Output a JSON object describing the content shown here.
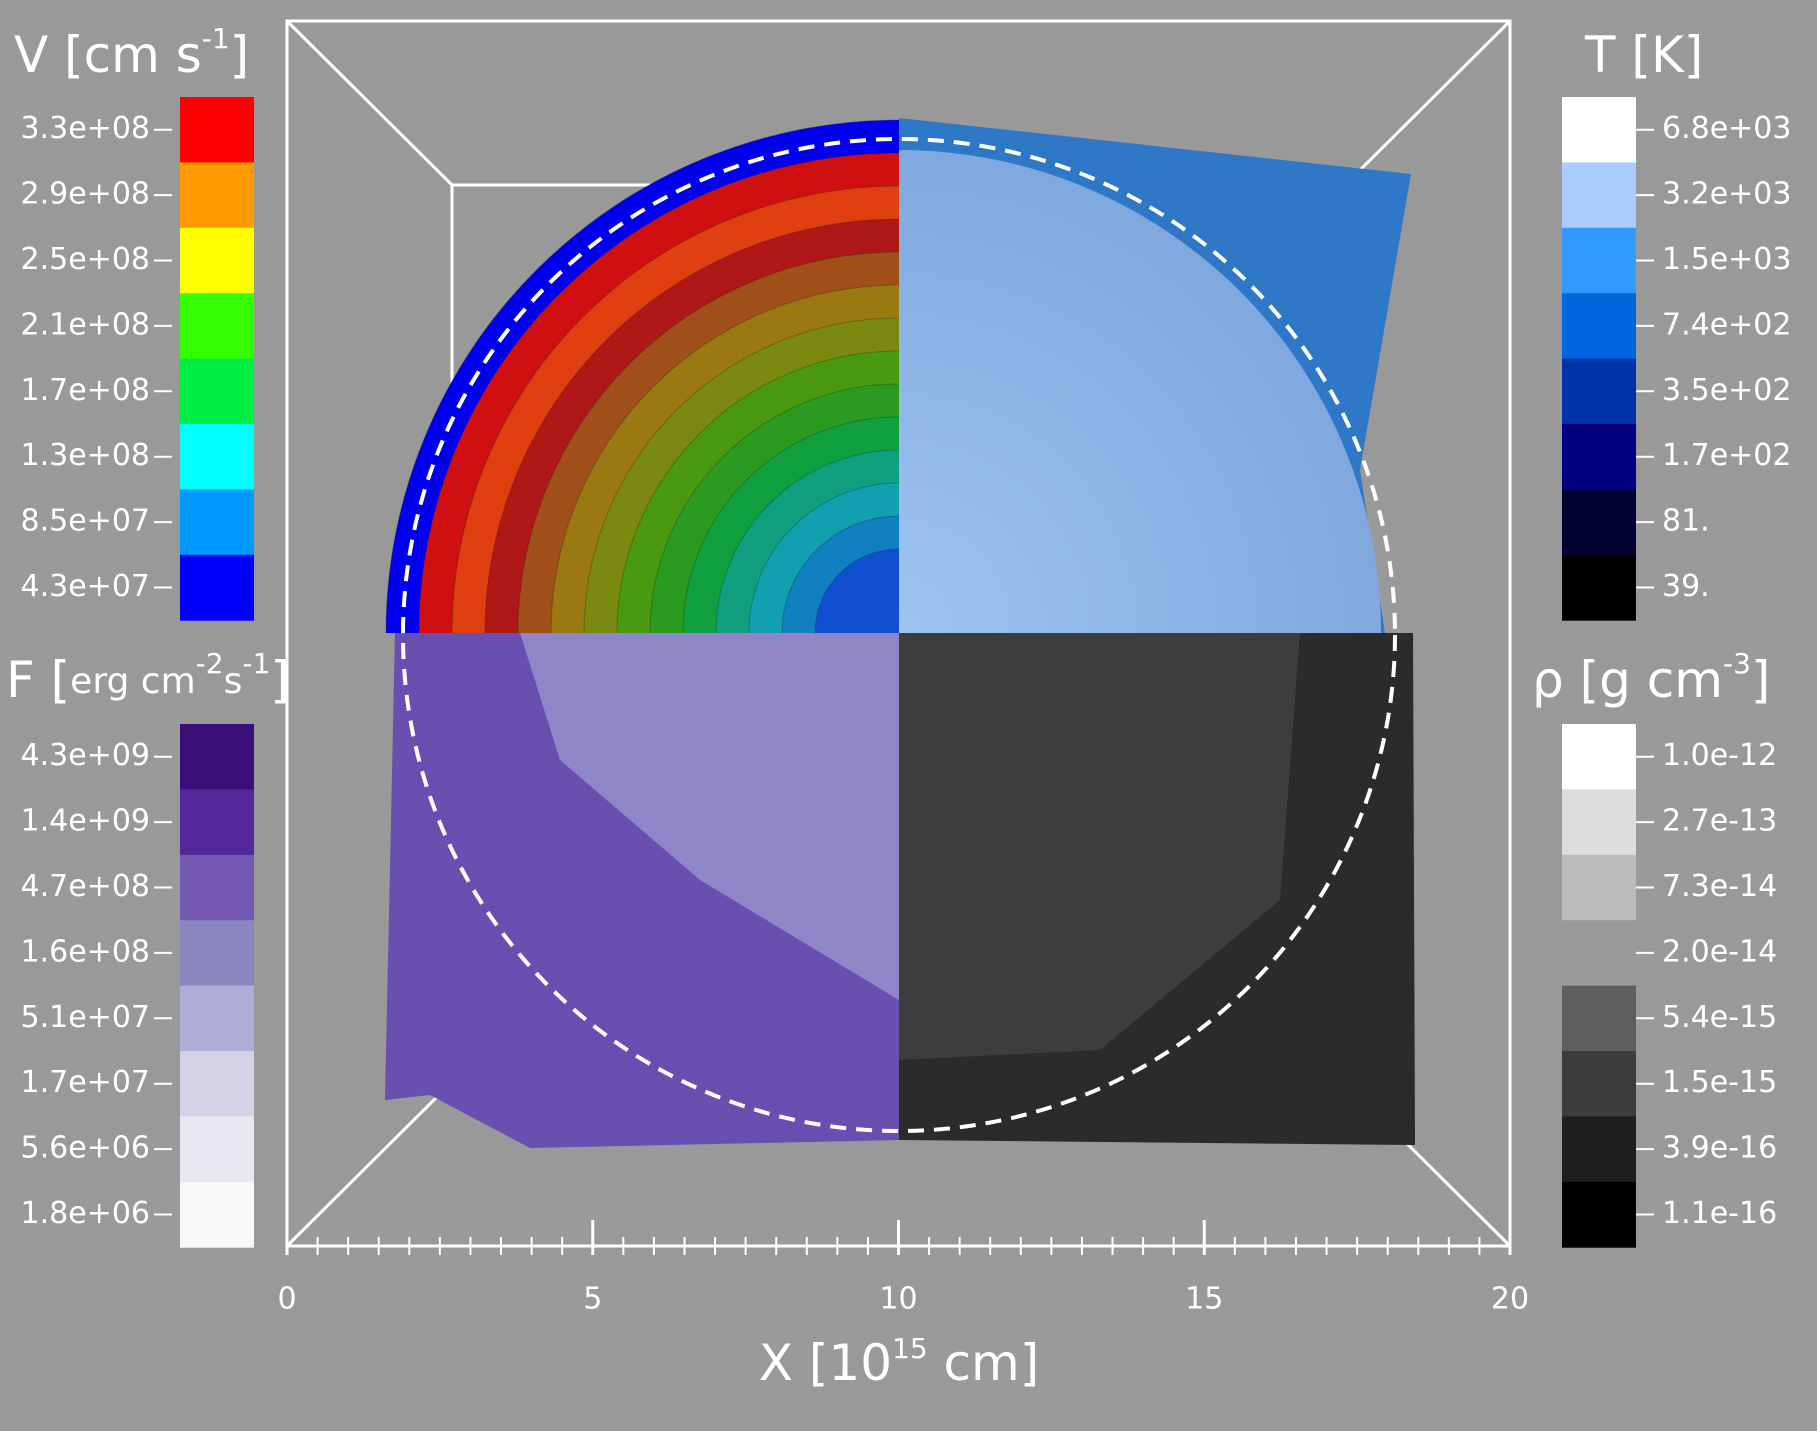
{
  "colorbars": [
    {
      "title": "V [cm s",
      "title_sup": "-1",
      "title_end": "]",
      "side": "left",
      "labels": [
        "3.3e+08",
        "2.9e+08",
        "2.5e+08",
        "2.1e+08",
        "1.7e+08",
        "1.3e+08",
        "8.5e+07",
        "4.3e+07"
      ],
      "colors": [
        "#ff0000",
        "#ff9900",
        "#ffff00",
        "#33ff00",
        "#00ee44",
        "#00ffff",
        "#0099ff",
        "#0000ff"
      ]
    },
    {
      "title": "T [K]",
      "side": "right",
      "labels": [
        "6.8e+03",
        "3.2e+03",
        "1.5e+03",
        "7.4e+02",
        "3.5e+02",
        "1.7e+02",
        "81.",
        "39."
      ],
      "colors": [
        "#ffffff",
        "#aaccff",
        "#3399ff",
        "#0066dd",
        "#0033aa",
        "#000080",
        "#000033",
        "#000000"
      ]
    },
    {
      "title": "F [",
      "title_small": "erg cm",
      "title_sup": "-2",
      "title_small2": "s",
      "title_sup2": "-1",
      "title_end": "]",
      "side": "left",
      "labels": [
        "4.3e+09",
        "1.4e+09",
        "4.7e+08",
        "1.6e+08",
        "5.1e+07",
        "1.7e+07",
        "5.6e+06",
        "1.8e+06"
      ],
      "colors": [
        "#3b0f7a",
        "#54279a",
        "#7559b0",
        "#8b85c0",
        "#b0acd8",
        "#d4d2e6",
        "#e9e8f1",
        "#f8f8fb"
      ]
    },
    {
      "title": "ρ [g cm",
      "title_sup": "-3",
      "title_end": "]",
      "side": "right",
      "labels": [
        "1.0e-12",
        "2.7e-13",
        "7.3e-14",
        "2.0e-14",
        "5.4e-15",
        "1.5e-15",
        "3.9e-16",
        "1.1e-16"
      ],
      "colors": [
        "#ffffff",
        "#dddddd",
        "#bbbbbb",
        "#999999",
        "#5e5e5e",
        "#3c3c3c",
        "#1e1e1e",
        "#000000"
      ]
    }
  ],
  "x_axis": {
    "label": "X [10",
    "label_sup": "15",
    "label_end": " cm]",
    "xlim": [
      0,
      20
    ],
    "xticks": [
      0,
      5,
      10,
      15,
      20
    ],
    "minor_step": 0.5
  }
}
